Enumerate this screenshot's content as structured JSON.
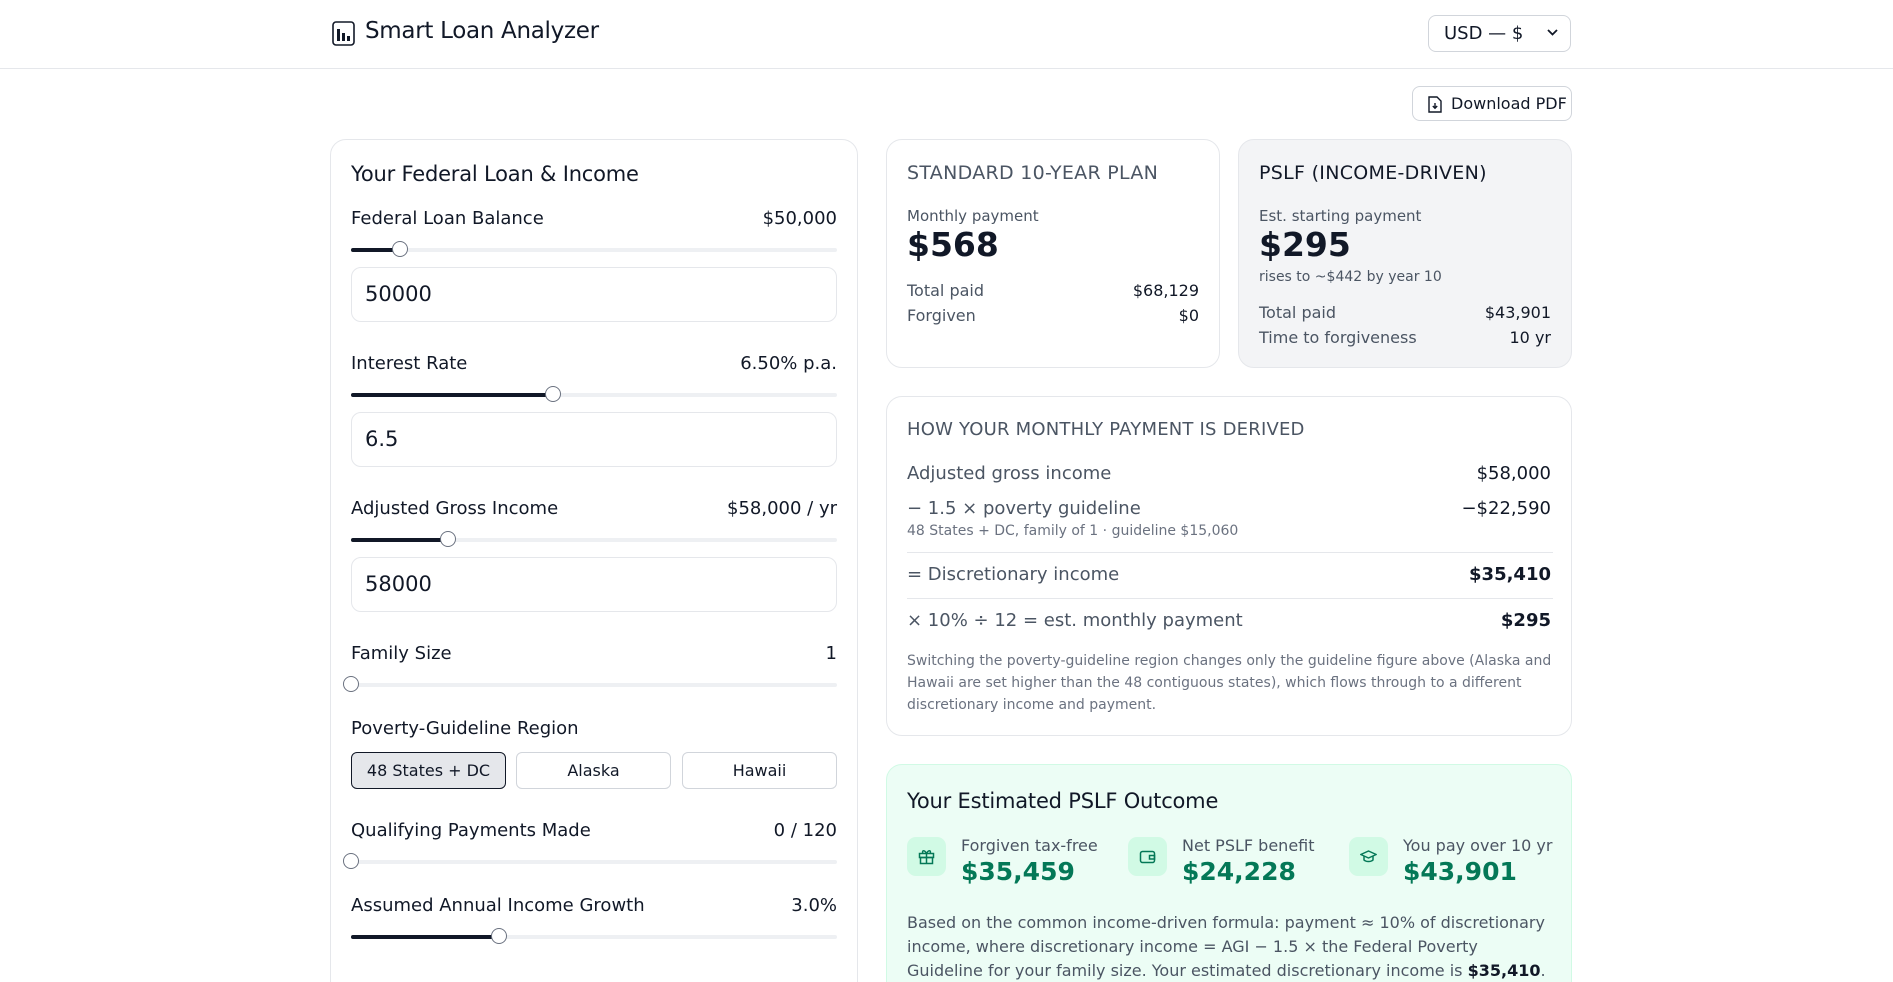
{
  "header": {
    "title": "Smart Loan Analyzer",
    "currency": "USD — $"
  },
  "toolbar": {
    "download_label": "Download PDF"
  },
  "inputs": {
    "title": "Your Federal Loan & Income",
    "loan_balance": {
      "label": "Federal Loan Balance",
      "display": "$50,000",
      "input": "50000",
      "slider_fraction": 0.1
    },
    "interest_rate": {
      "label": "Interest Rate",
      "display": "6.50% p.a.",
      "input": "6.5",
      "slider_fraction": 0.415
    },
    "agi": {
      "label": "Adjusted Gross Income",
      "display": "$58,000 / yr",
      "input": "58000",
      "slider_fraction": 0.2
    },
    "family_size": {
      "label": "Family Size",
      "display": "1",
      "slider_fraction": 0
    },
    "region": {
      "label": "Poverty-Guideline Region",
      "options": [
        "48 States + DC",
        "Alaska",
        "Hawaii"
      ],
      "selected": "48 States + DC"
    },
    "qualifying_payments": {
      "label": "Qualifying Payments Made",
      "display": "0 / 120",
      "slider_fraction": 0
    },
    "income_growth": {
      "label": "Assumed Annual Income Growth",
      "display": "3.0%",
      "slider_fraction": 0.305
    }
  },
  "standard_plan": {
    "title": "STANDARD 10-YEAR PLAN",
    "monthly_label": "Monthly payment",
    "monthly_value": "$568",
    "total_paid_label": "Total paid",
    "total_paid_value": "$68,129",
    "forgiven_label": "Forgiven",
    "forgiven_value": "$0"
  },
  "pslf_plan": {
    "title": "PSLF (INCOME-DRIVEN)",
    "monthly_label": "Est. starting payment",
    "monthly_value": "$295",
    "note": "rises to ~$442 by year 10",
    "total_paid_label": "Total paid",
    "total_paid_value": "$43,901",
    "time_label": "Time to forgiveness",
    "time_value": "10 yr"
  },
  "derivation": {
    "title": "HOW YOUR MONTHLY PAYMENT IS DERIVED",
    "agi_label": "Adjusted gross income",
    "agi_value": "$58,000",
    "poverty_label": "− 1.5 × poverty guideline",
    "poverty_value": "−$22,590",
    "poverty_sub": "48 States + DC, family of 1 · guideline $15,060",
    "disc_label": "= Discretionary income",
    "disc_value": "$35,410",
    "payment_label": "× 10% ÷ 12 = est. monthly payment",
    "payment_value": "$295",
    "footnote": "Switching the poverty-guideline region changes only the guideline figure above (Alaska and Hawaii are set higher than the 48 contiguous states), which flows through to a different discretionary income and payment."
  },
  "outcome": {
    "title": "Your Estimated PSLF Outcome",
    "forgiven_label": "Forgiven tax-free",
    "forgiven_value": "$35,459",
    "benefit_label": "Net PSLF benefit",
    "benefit_value": "$24,228",
    "paid_label": "You pay over 10 yr",
    "paid_value": "$43,901",
    "text_part1": "Based on the common income-driven formula: payment ≈ 10% of discretionary income, where discretionary income = AGI − 1.5 × the Federal Poverty Guideline for your family size. Your estimated discretionary income is ",
    "text_bold": "$35,410",
    "text_part2": ". This is an estimate for planning only —"
  },
  "colors": {
    "accent": "#111827",
    "success": "#047857",
    "success_bg": "#ecfdf5"
  },
  "icons": [
    "bar-chart-icon",
    "chevron-down-icon",
    "file-download-icon",
    "gift-icon",
    "wallet-icon",
    "graduation-cap-icon"
  ]
}
